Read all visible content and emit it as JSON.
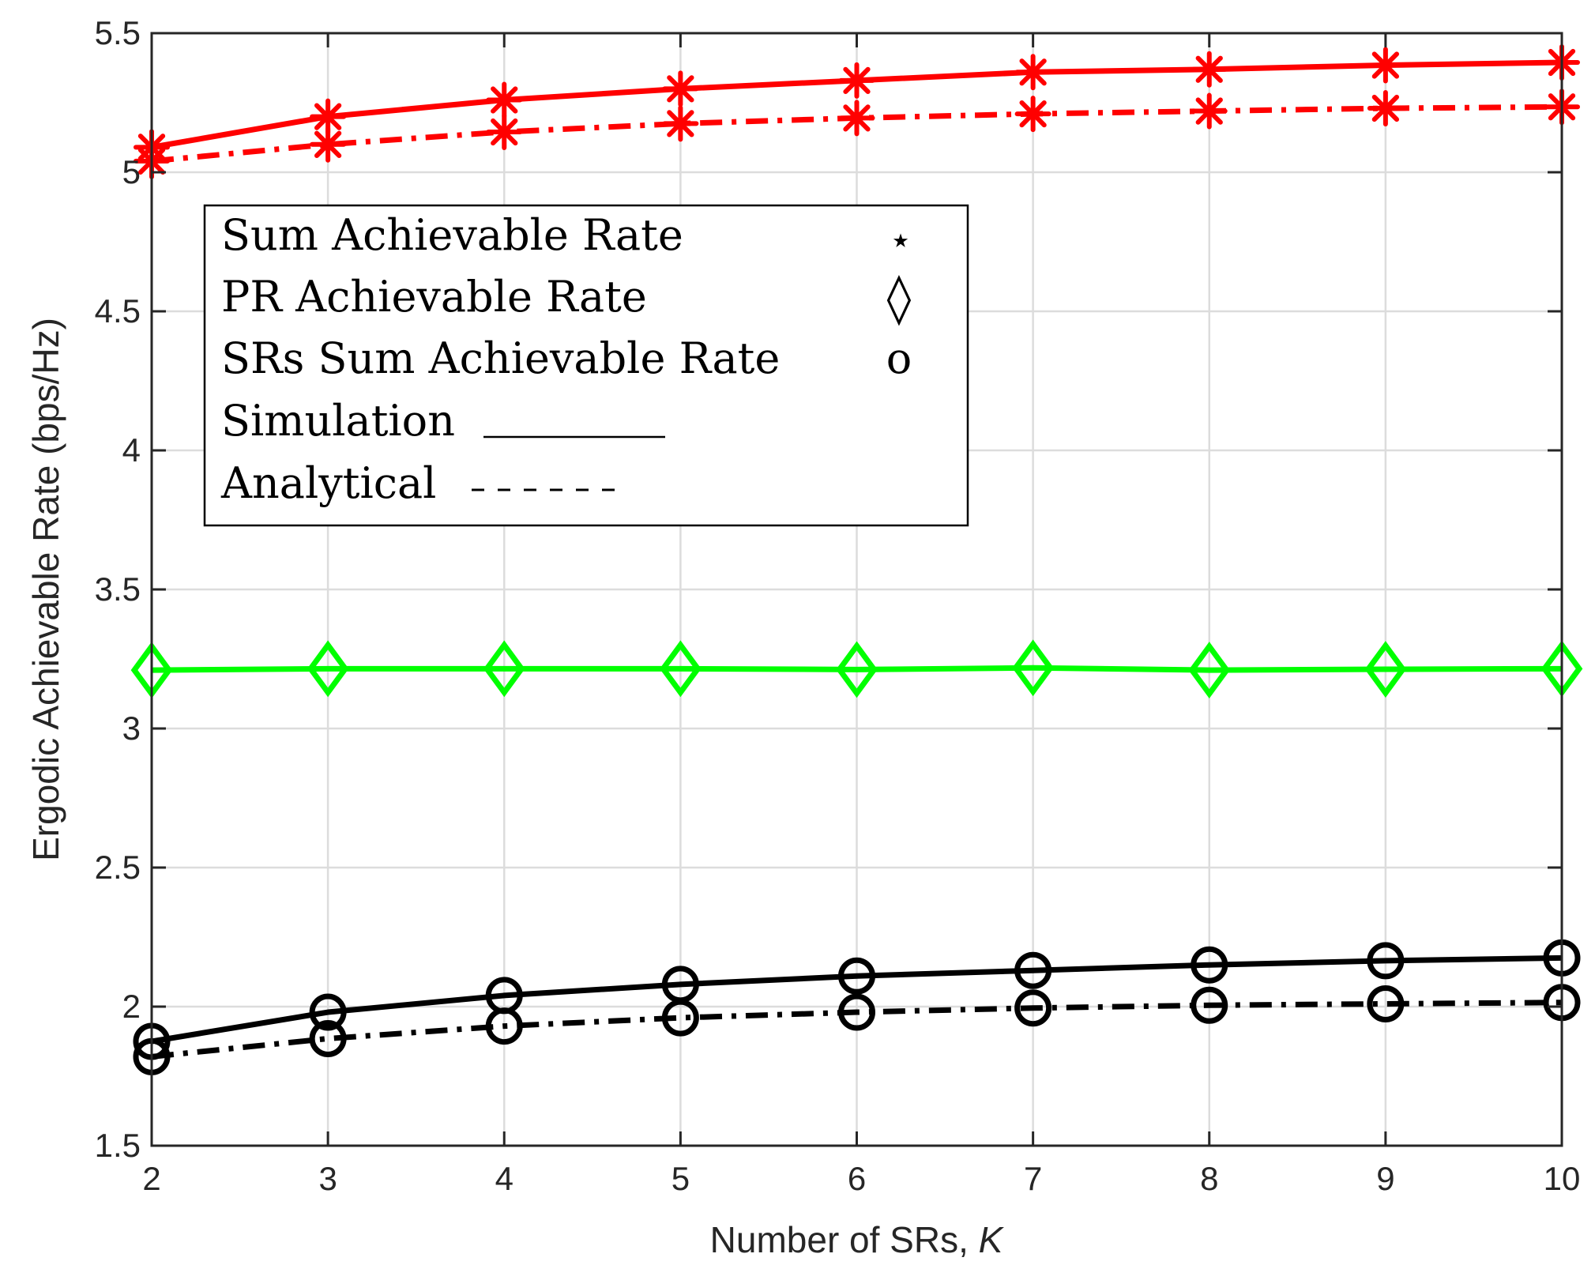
{
  "chart_data": {
    "type": "line",
    "title": "",
    "xlabel": "Number of SRs, ",
    "xlabel_var": "K",
    "ylabel": "Ergodic Achievable Rate (bps/Hz)",
    "xlim": [
      2,
      10
    ],
    "ylim": [
      1.5,
      5.5
    ],
    "grid": true,
    "x": [
      2,
      3,
      4,
      5,
      6,
      7,
      8,
      9,
      10
    ],
    "x_ticks": [
      "2",
      "3",
      "4",
      "5",
      "6",
      "7",
      "8",
      "9",
      "10"
    ],
    "y_ticks": [
      "1.5",
      "2",
      "2.5",
      "3",
      "3.5",
      "4",
      "4.5",
      "5",
      "5.5"
    ],
    "y_tick_values": [
      1.5,
      2,
      2.5,
      3,
      3.5,
      4,
      4.5,
      5,
      5.5
    ],
    "series": [
      {
        "name": "Sum Achievable Rate - Simulation",
        "color": "#ff0000",
        "style": "solid",
        "marker": "star",
        "values": [
          5.09,
          5.2,
          5.26,
          5.3,
          5.33,
          5.36,
          5.37,
          5.385,
          5.395
        ]
      },
      {
        "name": "Sum Achievable Rate - Analytical",
        "color": "#ff0000",
        "style": "dashdot",
        "marker": "star",
        "values": [
          5.04,
          5.1,
          5.145,
          5.175,
          5.195,
          5.21,
          5.22,
          5.23,
          5.235
        ]
      },
      {
        "name": "PR Achievable Rate - Simulation",
        "color": "#00ff00",
        "style": "solid",
        "marker": "diamond",
        "values": [
          3.21,
          3.215,
          3.215,
          3.215,
          3.212,
          3.218,
          3.21,
          3.213,
          3.215
        ]
      },
      {
        "name": "SRs Sum Achievable Rate - Simulation",
        "color": "#000000",
        "style": "solid",
        "marker": "circle",
        "values": [
          1.875,
          1.98,
          2.04,
          2.08,
          2.11,
          2.13,
          2.15,
          2.165,
          2.175
        ]
      },
      {
        "name": "SRs Sum Achievable Rate - Analytical",
        "color": "#000000",
        "style": "dashdot",
        "marker": "circle",
        "values": [
          1.82,
          1.885,
          1.93,
          1.96,
          1.98,
          1.995,
          2.005,
          2.01,
          2.015
        ]
      }
    ],
    "legend": {
      "position": "upper-left",
      "entries": [
        {
          "label": "Sum Achievable Rate",
          "symbol": "⋆"
        },
        {
          "label": "PR Achievable Rate",
          "symbol": "◊"
        },
        {
          "label": "SRs Sum Achievable Rate",
          "symbol": "o"
        },
        {
          "label": "Simulation",
          "line": "solid"
        },
        {
          "label": "Analytical",
          "line": "dashed"
        }
      ]
    }
  }
}
